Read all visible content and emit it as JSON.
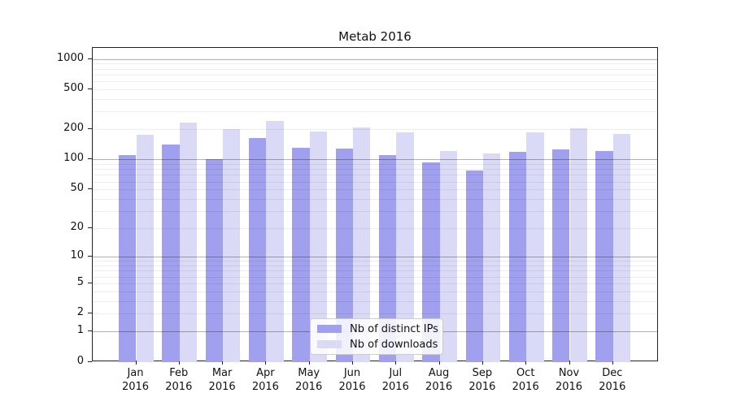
{
  "title": "Metab 2016",
  "legend": {
    "items": [
      {
        "label": "Nb of distinct IPs",
        "color": "#a0a0ee"
      },
      {
        "label": "Nb of downloads",
        "color": "#dadaf7"
      }
    ]
  },
  "chart_data": {
    "type": "bar",
    "title": "Metab 2016",
    "scale": "log1p",
    "categories": [
      "Jan 2016",
      "Feb 2016",
      "Mar 2016",
      "Apr 2016",
      "May 2016",
      "Jun 2016",
      "Jul 2016",
      "Aug 2016",
      "Sep 2016",
      "Oct 2016",
      "Nov 2016",
      "Dec 2016"
    ],
    "series": [
      {
        "name": "Nb of distinct IPs",
        "key": "distinct-ips",
        "color": "#a0a0ee",
        "values": [
          110,
          140,
          100,
          165,
          130,
          128,
          110,
          93,
          77,
          120,
          127,
          122
        ]
      },
      {
        "name": "Nb of downloads",
        "key": "downloads",
        "color": "#dadaf7",
        "values": [
          175,
          235,
          200,
          240,
          190,
          210,
          185,
          122,
          115,
          185,
          203,
          180
        ]
      }
    ],
    "yticks": [
      0,
      1,
      2,
      5,
      10,
      20,
      50,
      100,
      200,
      500,
      1000
    ],
    "ylim": [
      0,
      1285
    ],
    "xlabel": "",
    "ylabel": "",
    "grid": true,
    "legend_position": "inside lower center"
  }
}
